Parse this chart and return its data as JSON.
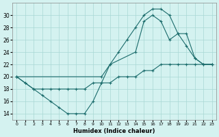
{
  "xlabel": "Humidex (Indice chaleur)",
  "xlim": [
    -0.5,
    23.5
  ],
  "ylim": [
    13,
    32
  ],
  "yticks": [
    14,
    16,
    18,
    20,
    22,
    24,
    26,
    28,
    30
  ],
  "xticks": [
    0,
    1,
    2,
    3,
    4,
    5,
    6,
    7,
    8,
    9,
    10,
    11,
    12,
    13,
    14,
    15,
    16,
    17,
    18,
    19,
    20,
    21,
    22,
    23
  ],
  "bg_color": "#d4f2f0",
  "grid_color": "#a8d8d4",
  "line_color": "#1a6b6b",
  "series1_x": [
    0,
    1,
    2,
    3,
    4,
    5,
    6,
    7,
    8,
    9,
    10,
    11,
    12,
    13,
    14,
    15,
    16,
    17,
    18,
    19,
    20,
    21,
    22,
    23
  ],
  "series1_y": [
    20,
    19,
    18,
    17,
    16,
    15,
    14,
    14,
    14,
    16,
    19,
    22,
    24,
    26,
    28,
    30,
    31,
    31,
    30,
    27,
    25,
    23,
    22,
    22
  ],
  "series2_x": [
    0,
    10,
    11,
    14,
    15,
    16,
    17,
    18,
    19,
    20,
    21,
    22,
    23
  ],
  "series2_y": [
    20,
    20,
    22,
    24,
    29,
    30,
    29,
    26,
    27,
    27,
    23,
    22,
    22
  ],
  "series3_x": [
    0,
    1,
    2,
    3,
    4,
    5,
    6,
    7,
    8,
    9,
    10,
    11,
    12,
    13,
    14,
    15,
    16,
    17,
    18,
    19,
    20,
    21,
    22,
    23
  ],
  "series3_y": [
    20,
    19,
    18,
    18,
    18,
    18,
    18,
    18,
    18,
    19,
    19,
    19,
    20,
    20,
    20,
    21,
    21,
    22,
    22,
    22,
    22,
    22,
    22,
    22
  ]
}
